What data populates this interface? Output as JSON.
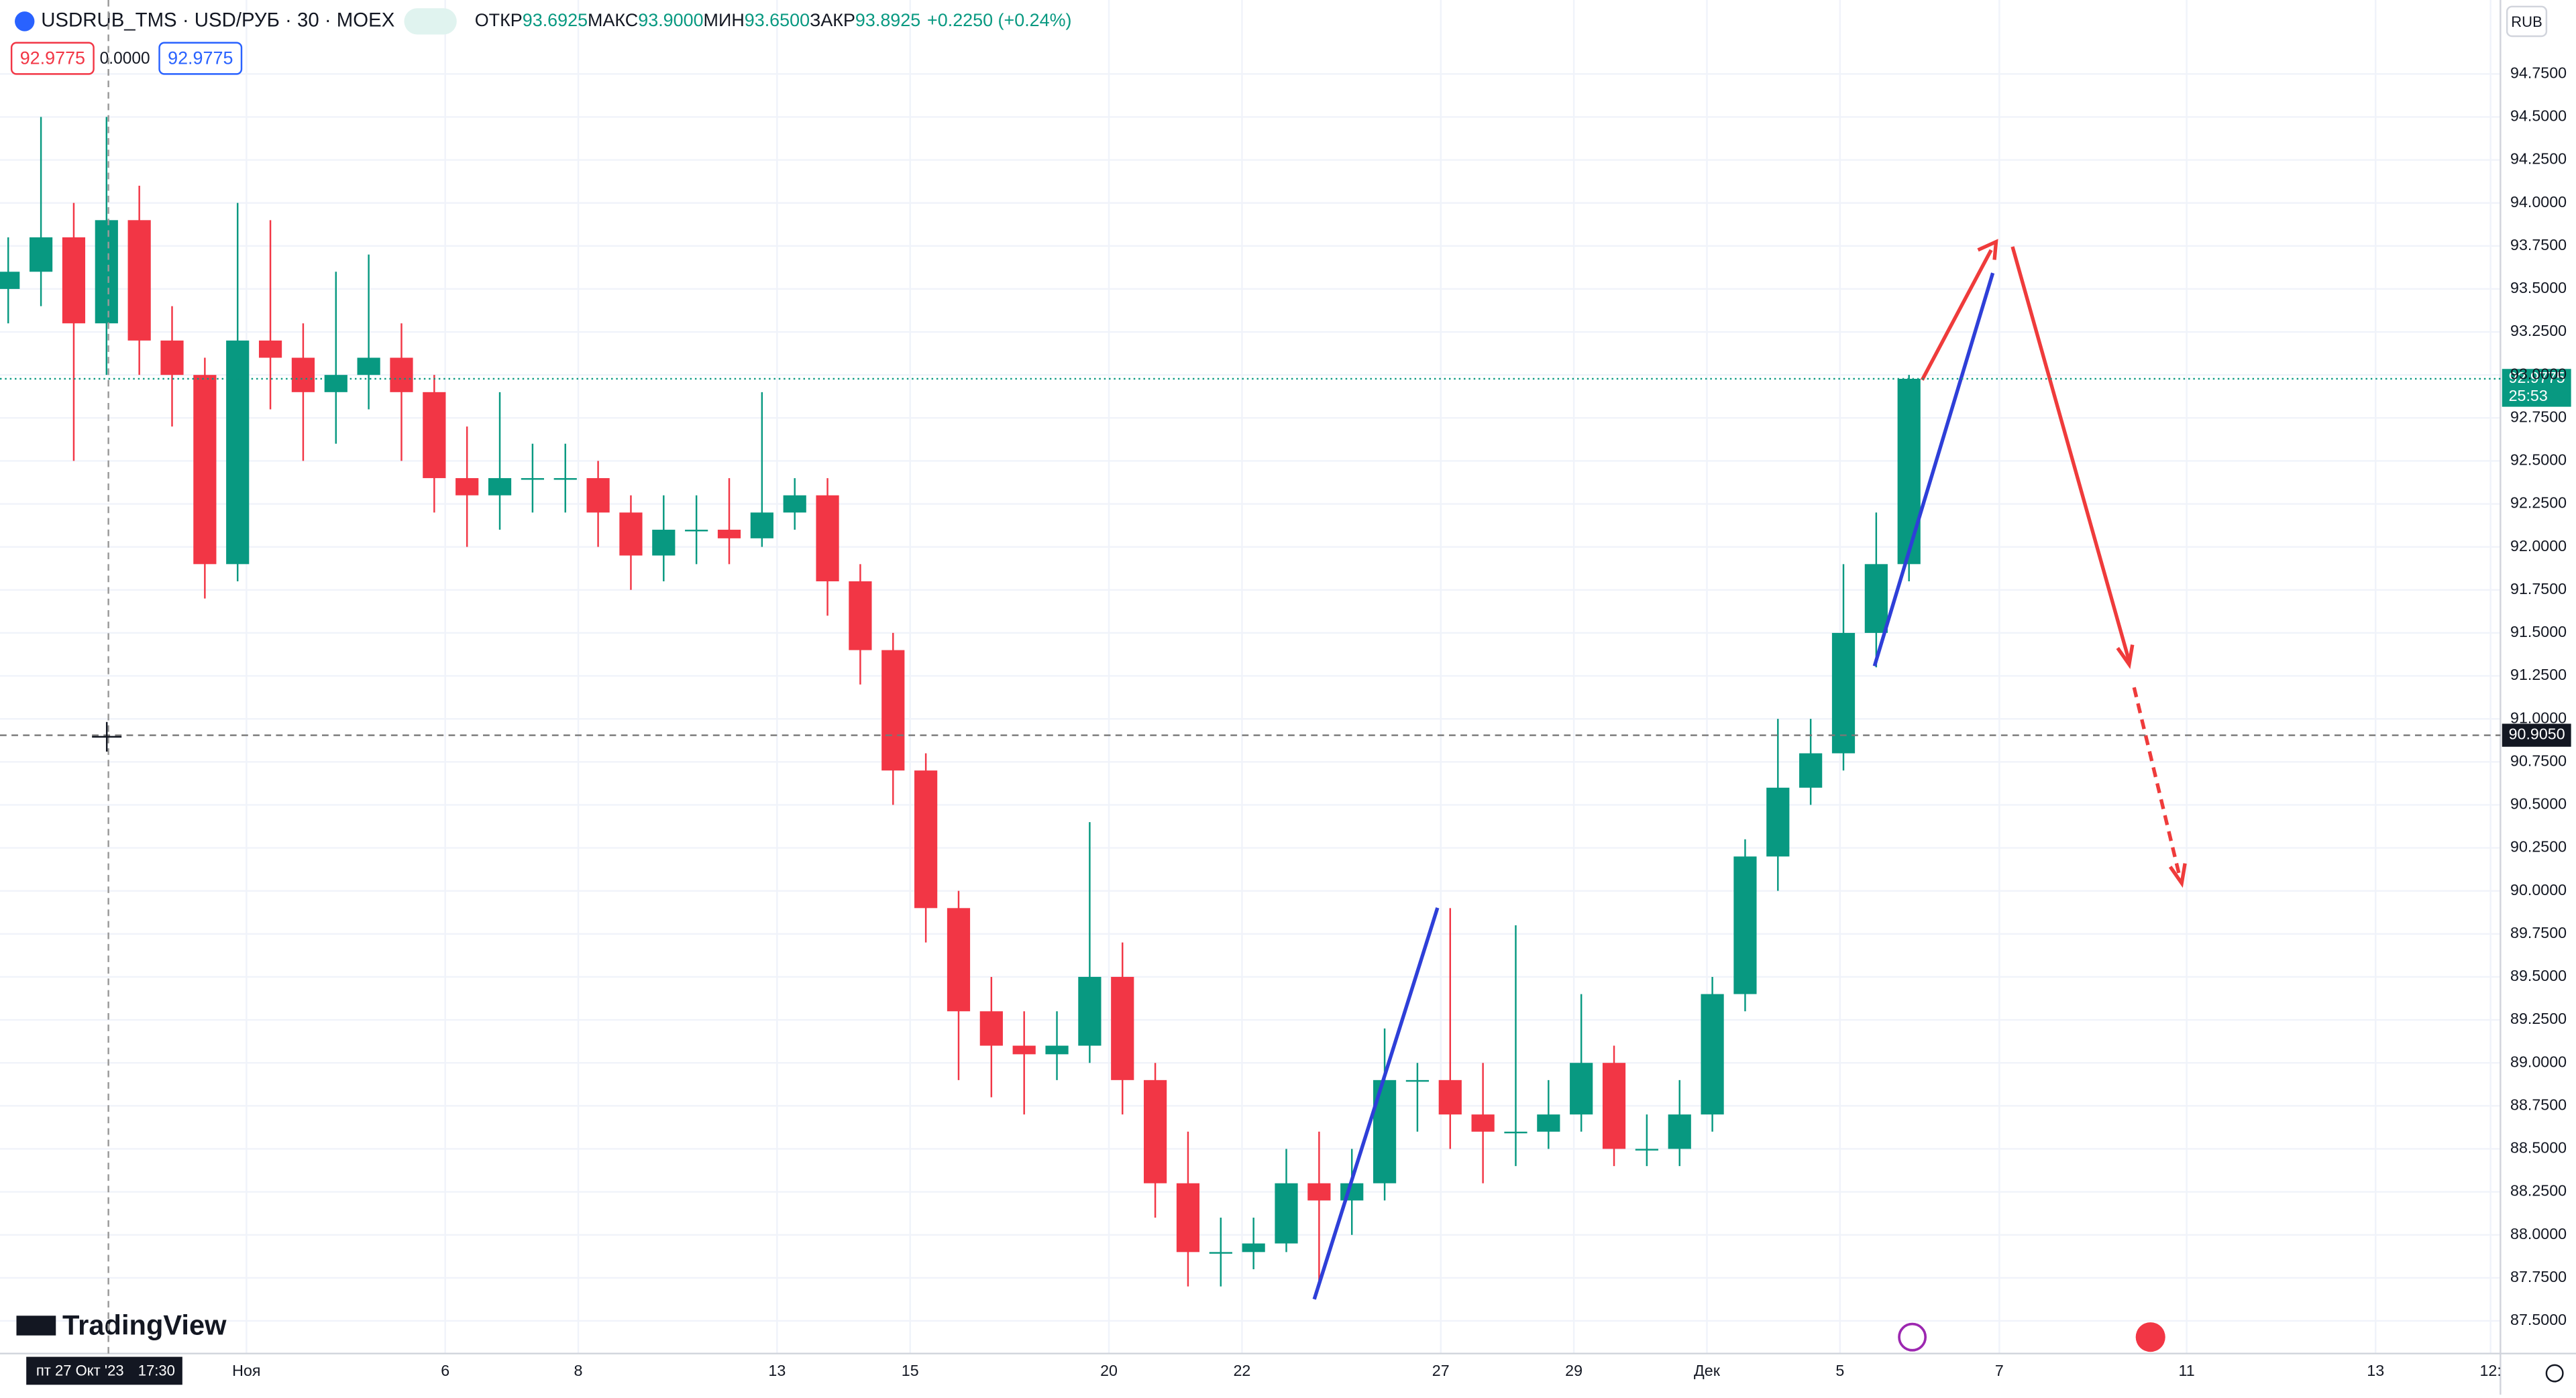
{
  "chart_data": {
    "type": "candlestick",
    "symbol": "USDRUB_TMS · USD/РУБ · 30 · MOEX",
    "ohlc_header": [
      {
        "label": "ОТКР",
        "value": "93.6925"
      },
      {
        "label": "МАКС",
        "value": "93.9000"
      },
      {
        "label": "МИН",
        "value": "93.6500"
      },
      {
        "label": "ЗАКР",
        "value": "93.8925"
      }
    ],
    "change": "+0.2250 (+0.24%)",
    "order_boxes": [
      "92.9775",
      "0.0000",
      "92.9775"
    ],
    "currency": "RUB",
    "logo": "TradingView",
    "open": [
      93.5,
      93.6,
      93.8,
      93.3,
      93.9,
      93.2,
      93.0,
      91.9,
      93.2,
      93.1,
      92.9,
      93.0,
      93.1,
      92.9,
      92.4,
      92.3,
      92.4,
      92.4,
      92.4,
      92.2,
      91.95,
      92.1,
      92.1,
      92.05,
      92.2,
      92.3,
      91.8,
      91.4,
      90.7,
      89.9,
      89.3,
      89.1,
      89.05,
      89.1,
      89.5,
      88.9,
      88.3,
      87.9,
      87.9,
      87.95,
      88.3,
      88.2,
      88.3,
      88.9,
      88.9,
      88.7,
      88.6,
      88.6,
      88.7,
      89.0,
      88.5,
      88.5,
      88.7,
      89.4,
      90.2,
      90.6,
      90.8,
      91.5,
      91.9
    ],
    "high": [
      93.8,
      94.5,
      94.0,
      94.5,
      94.1,
      93.4,
      93.1,
      94.0,
      93.9,
      93.3,
      93.6,
      93.7,
      93.3,
      93.0,
      92.7,
      92.9,
      92.6,
      92.6,
      92.5,
      92.3,
      92.3,
      92.3,
      92.4,
      92.9,
      92.4,
      92.4,
      91.9,
      91.5,
      90.8,
      90.0,
      89.5,
      89.3,
      89.3,
      90.4,
      89.7,
      89.0,
      88.6,
      88.1,
      88.1,
      88.5,
      88.6,
      88.5,
      89.2,
      89.0,
      89.9,
      89.0,
      89.8,
      88.9,
      89.4,
      89.1,
      88.7,
      88.9,
      89.5,
      90.3,
      91.0,
      91.0,
      91.9,
      92.2,
      93.0
    ],
    "low": [
      93.3,
      93.4,
      92.5,
      93.0,
      93.0,
      92.7,
      91.7,
      91.8,
      92.8,
      92.5,
      92.6,
      92.8,
      92.5,
      92.2,
      92.0,
      92.1,
      92.2,
      92.2,
      92.0,
      91.75,
      91.8,
      91.9,
      91.9,
      92.0,
      92.1,
      91.6,
      91.2,
      90.5,
      89.7,
      88.9,
      88.8,
      88.7,
      88.9,
      89.0,
      88.7,
      88.1,
      87.7,
      87.7,
      87.8,
      87.9,
      87.7,
      88.0,
      88.2,
      88.6,
      88.5,
      88.3,
      88.4,
      88.5,
      88.6,
      88.4,
      88.4,
      88.4,
      88.6,
      89.3,
      90.0,
      90.5,
      90.7,
      91.3,
      91.8
    ],
    "close": [
      93.6,
      93.8,
      93.3,
      93.9,
      93.2,
      93.0,
      91.9,
      93.2,
      93.1,
      92.9,
      93.0,
      93.1,
      92.9,
      92.4,
      92.3,
      92.4,
      92.4,
      92.4,
      92.2,
      91.95,
      92.1,
      92.1,
      92.05,
      92.2,
      92.3,
      91.8,
      91.4,
      90.7,
      89.9,
      89.3,
      89.1,
      89.05,
      89.1,
      89.5,
      88.9,
      88.3,
      87.9,
      87.9,
      87.95,
      88.3,
      88.2,
      88.3,
      88.9,
      88.9,
      88.7,
      88.6,
      88.6,
      88.7,
      89.0,
      88.5,
      88.5,
      88.7,
      89.4,
      90.2,
      90.6,
      90.8,
      91.5,
      91.9,
      92.9775
    ],
    "up_color": "#089981",
    "down_color": "#f23645",
    "ylim": [
      87.31,
      95.18
    ],
    "yticks": [
      {
        "value": 87.5,
        "label": "87.5000"
      },
      {
        "value": 87.75,
        "label": "87.7500"
      },
      {
        "value": 88,
        "label": "88.0000"
      },
      {
        "value": 88.25,
        "label": "88.2500"
      },
      {
        "value": 88.5,
        "label": "88.5000"
      },
      {
        "value": 88.75,
        "label": "88.7500"
      },
      {
        "value": 89,
        "label": "89.0000"
      },
      {
        "value": 89.25,
        "label": "89.2500"
      },
      {
        "value": 89.5,
        "label": "89.5000"
      },
      {
        "value": 89.75,
        "label": "89.7500"
      },
      {
        "value": 90,
        "label": "90.0000"
      },
      {
        "value": 90.25,
        "label": "90.2500"
      },
      {
        "value": 90.5,
        "label": "90.5000"
      },
      {
        "value": 90.75,
        "label": "90.7500"
      },
      {
        "value": 91,
        "label": "91.0000"
      },
      {
        "value": 91.25,
        "label": "91.2500"
      },
      {
        "value": 91.5,
        "label": "91.5000"
      },
      {
        "value": 91.75,
        "label": "91.7500"
      },
      {
        "value": 92,
        "label": "92.0000"
      },
      {
        "value": 92.25,
        "label": "92.2500"
      },
      {
        "value": 92.5,
        "label": "92.5000"
      },
      {
        "value": 92.75,
        "label": "92.7500"
      },
      {
        "value": 93,
        "label": "93.0000"
      },
      {
        "value": 93.25,
        "label": "93.2500"
      },
      {
        "value": 93.5,
        "label": "93.5000"
      },
      {
        "value": 93.75,
        "label": "93.7500"
      },
      {
        "value": 94,
        "label": "94.0000"
      },
      {
        "value": 94.25,
        "label": "94.2500"
      },
      {
        "value": 94.5,
        "label": "94.5000"
      },
      {
        "value": 94.75,
        "label": "94.7500"
      }
    ],
    "xtick_labels": [
      "Ноя",
      "6",
      "8",
      "13",
      "15",
      "20",
      "22",
      "27",
      "29",
      "Дек",
      "5",
      "7",
      "11",
      "13",
      "12:"
    ],
    "last_price": {
      "value": 92.9775,
      "label": "92.9775"
    },
    "countdown": "25:53",
    "crosshair_price": {
      "value": 90.905,
      "label": "90.9050"
    },
    "crosshair_date": "пт 27 Окт '23",
    "crosshair_time": "17:30"
  }
}
